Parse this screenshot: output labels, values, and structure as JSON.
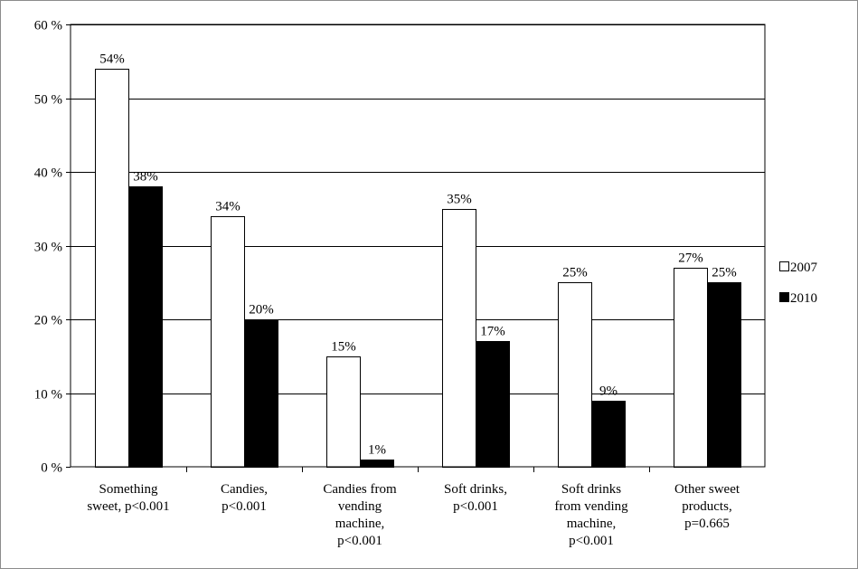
{
  "chart_data": {
    "type": "bar",
    "title": "",
    "xlabel": "",
    "ylabel": "",
    "ylim": [
      0,
      60
    ],
    "y_ticks": [
      "0 %",
      "10 %",
      "20 %",
      "30 %",
      "40 %",
      "50 %",
      "60 %"
    ],
    "y_tick_values": [
      0,
      10,
      20,
      30,
      40,
      50,
      60
    ],
    "grid": true,
    "legend_position": "right",
    "categories": [
      [
        "Something",
        "sweet, p<0.001"
      ],
      [
        "Candies,",
        "p<0.001"
      ],
      [
        "Candies from",
        "vending",
        "machine,",
        "p<0.001"
      ],
      [
        "Soft drinks,",
        "p<0.001"
      ],
      [
        "Soft drinks",
        "from vending",
        "machine,",
        "p<0.001"
      ],
      [
        "Other sweet",
        "products,",
        "p=0.665"
      ]
    ],
    "series": [
      {
        "name": "2007",
        "color": "#ffffff",
        "values": [
          54,
          34,
          15,
          35,
          25,
          27
        ],
        "labels": [
          "54%",
          "34%",
          "15%",
          "35%",
          "25%",
          "27%"
        ]
      },
      {
        "name": "2010",
        "color": "#000000",
        "values": [
          38,
          20,
          1,
          17,
          9,
          25
        ],
        "labels": [
          "38%",
          "20%",
          "1%",
          "17%",
          "9%",
          "25%"
        ]
      }
    ]
  }
}
